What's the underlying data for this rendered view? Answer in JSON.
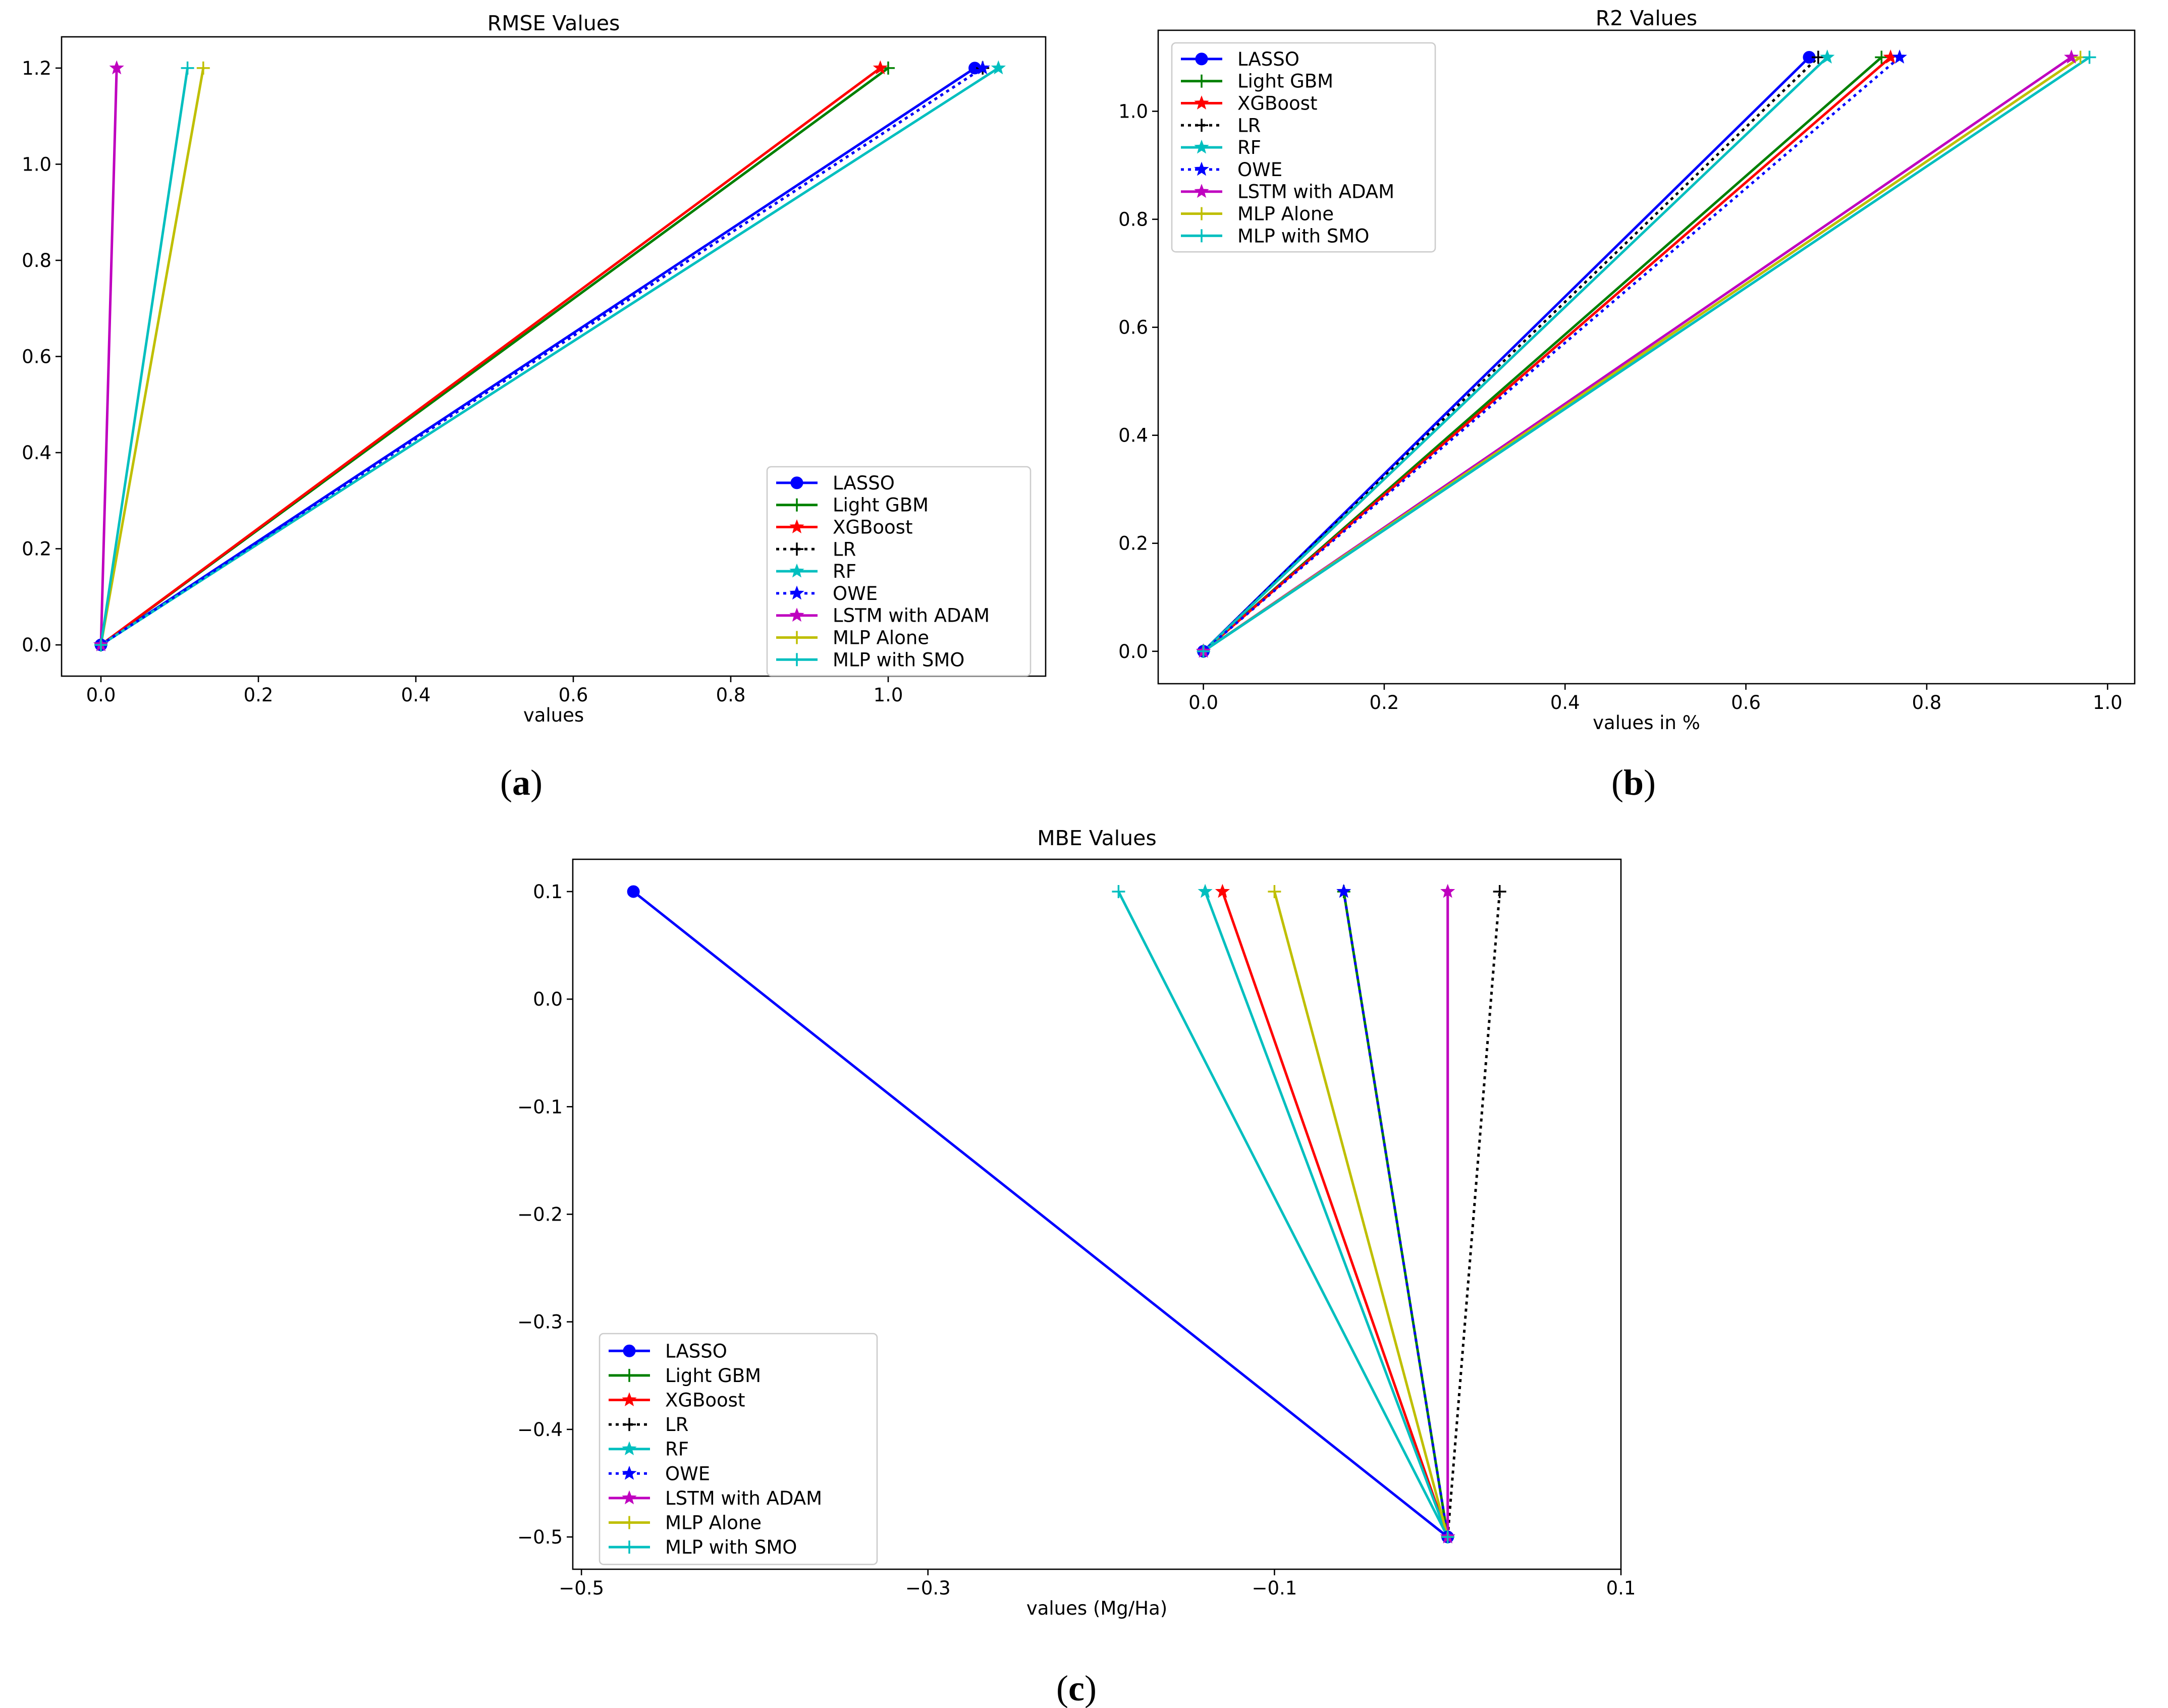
{
  "captions": [
    "(a)",
    "(b)",
    "(c)"
  ],
  "series_styles": {
    "LASSO": {
      "color": "#0000ff",
      "marker": "circle",
      "dash": false
    },
    "Light GBM": {
      "color": "#008000",
      "marker": "plus",
      "dash": false
    },
    "XGBoost": {
      "color": "#ff0000",
      "marker": "star",
      "dash": false
    },
    "LR": {
      "color": "#000000",
      "marker": "plus",
      "dash": true
    },
    "RF": {
      "color": "#00bfbf",
      "marker": "star",
      "dash": false
    },
    "OWE": {
      "color": "#0000ff",
      "marker": "star",
      "dash": true
    },
    "LSTM with ADAM": {
      "color": "#bf00bf",
      "marker": "star",
      "dash": false
    },
    "MLP Alone": {
      "color": "#bfbf00",
      "marker": "plus",
      "dash": false
    },
    "MLP with SMO": {
      "color": "#00bfbf",
      "marker": "plus",
      "dash": false
    }
  },
  "chart_data": [
    {
      "type": "line",
      "title": "RMSE Values",
      "xlabel": "values",
      "ylabel": "",
      "xlim": [
        -0.05,
        1.2
      ],
      "ylim": [
        -0.065,
        1.265
      ],
      "xticks": [
        0.0,
        0.2,
        0.4,
        0.6,
        0.8,
        1.0
      ],
      "xtick_labels": [
        "0.0",
        "0.2",
        "0.4",
        "0.6",
        "0.8",
        "1.0"
      ],
      "yticks": [
        0.0,
        0.2,
        0.4,
        0.6,
        0.8,
        1.0,
        1.2
      ],
      "ytick_labels": [
        "0.0",
        "0.2",
        "0.4",
        "0.6",
        "0.8",
        "1.0",
        "1.2"
      ],
      "legend": "lower-right",
      "series": [
        {
          "name": "LASSO",
          "x": [
            0.0,
            1.11
          ],
          "y": [
            0.0,
            1.2
          ]
        },
        {
          "name": "Light GBM",
          "x": [
            0.0,
            1.0
          ],
          "y": [
            0.0,
            1.2
          ]
        },
        {
          "name": "XGBoost",
          "x": [
            0.0,
            0.99
          ],
          "y": [
            0.0,
            1.2
          ]
        },
        {
          "name": "LR",
          "x": [
            0.0,
            1.12
          ],
          "y": [
            0.0,
            1.2
          ]
        },
        {
          "name": "RF",
          "x": [
            0.0,
            1.14
          ],
          "y": [
            0.0,
            1.2
          ]
        },
        {
          "name": "OWE",
          "x": [
            0.0,
            1.12
          ],
          "y": [
            0.0,
            1.2
          ]
        },
        {
          "name": "LSTM with ADAM",
          "x": [
            0.0,
            0.02
          ],
          "y": [
            0.0,
            1.2
          ]
        },
        {
          "name": "MLP Alone",
          "x": [
            0.0,
            0.13
          ],
          "y": [
            0.0,
            1.2
          ]
        },
        {
          "name": "MLP with SMO",
          "x": [
            0.0,
            0.11
          ],
          "y": [
            0.0,
            1.2
          ]
        }
      ]
    },
    {
      "type": "line",
      "title": "R2 Values",
      "xlabel": "values in %",
      "ylabel": "",
      "xlim": [
        -0.05,
        1.03
      ],
      "ylim": [
        -0.06,
        1.15
      ],
      "xticks": [
        0.0,
        0.2,
        0.4,
        0.6,
        0.8,
        1.0
      ],
      "xtick_labels": [
        "0.0",
        "0.2",
        "0.4",
        "0.6",
        "0.8",
        "1.0"
      ],
      "yticks": [
        0.0,
        0.2,
        0.4,
        0.6,
        0.8,
        1.0
      ],
      "ytick_labels": [
        "0.0",
        "0.2",
        "0.4",
        "0.6",
        "0.8",
        "1.0"
      ],
      "legend": "upper-left",
      "series": [
        {
          "name": "LASSO",
          "x": [
            0.0,
            0.67
          ],
          "y": [
            0.0,
            1.1
          ]
        },
        {
          "name": "Light GBM",
          "x": [
            0.0,
            0.75
          ],
          "y": [
            0.0,
            1.1
          ]
        },
        {
          "name": "XGBoost",
          "x": [
            0.0,
            0.76
          ],
          "y": [
            0.0,
            1.1
          ]
        },
        {
          "name": "LR",
          "x": [
            0.0,
            0.68
          ],
          "y": [
            0.0,
            1.1
          ]
        },
        {
          "name": "RF",
          "x": [
            0.0,
            0.69
          ],
          "y": [
            0.0,
            1.1
          ]
        },
        {
          "name": "OWE",
          "x": [
            0.0,
            0.77
          ],
          "y": [
            0.0,
            1.1
          ]
        },
        {
          "name": "LSTM with ADAM",
          "x": [
            0.0,
            0.96
          ],
          "y": [
            0.0,
            1.1
          ]
        },
        {
          "name": "MLP Alone",
          "x": [
            0.0,
            0.97
          ],
          "y": [
            0.0,
            1.1
          ]
        },
        {
          "name": "MLP with SMO",
          "x": [
            0.0,
            0.98
          ],
          "y": [
            0.0,
            1.1
          ]
        }
      ]
    },
    {
      "type": "line",
      "title": "MBE Values",
      "xlabel": "values (Mg/Ha)",
      "ylabel": "",
      "xlim": [
        -0.505,
        0.1
      ],
      "ylim": [
        -0.53,
        0.13
      ],
      "xticks": [
        -0.5,
        -0.3,
        -0.1,
        0.1
      ],
      "xtick_labels": [
        "−0.5",
        "−0.3",
        "−0.1",
        "0.1"
      ],
      "yticks": [
        0.1,
        0.0,
        -0.1,
        -0.2,
        -0.3,
        -0.4,
        -0.5
      ],
      "ytick_labels": [
        "0.1",
        "0.0",
        "−0.1",
        "−0.2",
        "−0.3",
        "−0.4",
        "−0.5"
      ],
      "legend": "lower-left",
      "series": [
        {
          "name": "LASSO",
          "x": [
            -0.0,
            -0.47
          ],
          "y": [
            -0.5,
            0.1
          ]
        },
        {
          "name": "Light GBM",
          "x": [
            -0.0,
            -0.06
          ],
          "y": [
            -0.5,
            0.1
          ]
        },
        {
          "name": "XGBoost",
          "x": [
            -0.0,
            -0.13
          ],
          "y": [
            -0.5,
            0.1
          ]
        },
        {
          "name": "LR",
          "x": [
            -0.0,
            0.03
          ],
          "y": [
            -0.5,
            0.1
          ]
        },
        {
          "name": "RF",
          "x": [
            -0.0,
            -0.14
          ],
          "y": [
            -0.5,
            0.1
          ]
        },
        {
          "name": "OWE",
          "x": [
            -0.0,
            -0.06
          ],
          "y": [
            -0.5,
            0.1
          ]
        },
        {
          "name": "LSTM with ADAM",
          "x": [
            -0.0,
            -0.0
          ],
          "y": [
            -0.5,
            0.1
          ]
        },
        {
          "name": "MLP Alone",
          "x": [
            -0.0,
            -0.1
          ],
          "y": [
            -0.5,
            0.1
          ]
        },
        {
          "name": "MLP with SMO",
          "x": [
            -0.0,
            -0.19
          ],
          "y": [
            -0.5,
            0.1
          ]
        }
      ]
    }
  ]
}
